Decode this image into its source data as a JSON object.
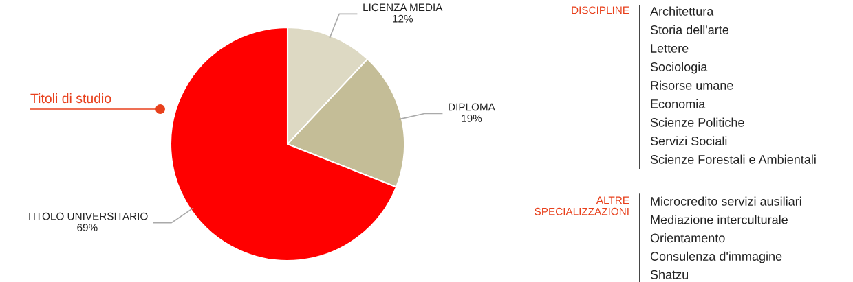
{
  "chart_data": [
    {
      "type": "pie",
      "title": "Titoli di studio",
      "categories": [
        "LICENZA MEDIA",
        "DIPLOMA",
        "TITOLO UNIVERSITARIO"
      ],
      "values": [
        12,
        19,
        69
      ],
      "value_labels": [
        "12%",
        "19%",
        "69%"
      ],
      "colors": [
        "#ddd9c3",
        "#c4bd97",
        "#ff0000"
      ]
    },
    {
      "type": "other",
      "title": "DISCIPLINE",
      "annotations": [
        "Architettura",
        "Storia dell'arte",
        "Lettere",
        "Sociologia",
        "Risorse umane",
        "Economia",
        "Scienze Politiche",
        "Servizi Sociali",
        "Scienze Forestali e Ambientali"
      ]
    },
    {
      "type": "other",
      "title": "ALTRE\nSPECIALIZZAZIONI",
      "annotations": [
        "Microcredito servizi ausiliari",
        "Mediazione interculturale",
        "Orientamento",
        "Consulenza d'immagine",
        "Shatzu"
      ]
    }
  ]
}
